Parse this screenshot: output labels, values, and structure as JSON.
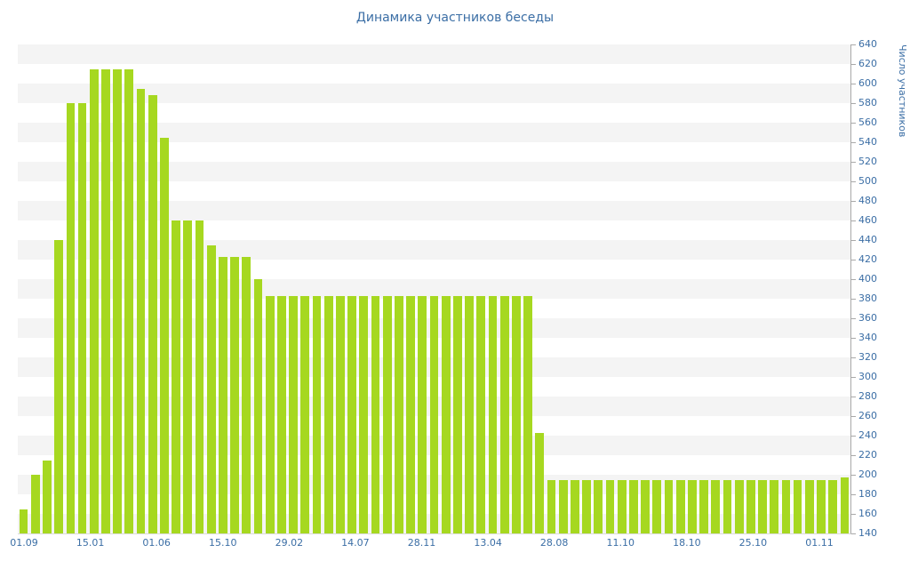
{
  "title": "Динамика участников беседы",
  "chart_data": {
    "type": "bar",
    "title": "Динамика участников беседы",
    "xlabel": "",
    "ylabel": "Число участников",
    "ylim": [
      140,
      640
    ],
    "ytick_step": 20,
    "grid": "striped-horizontal-bands",
    "legend": "none",
    "bar_color": "#a6d820",
    "label_color": "#3b6ea5",
    "x_labels": [
      "01.09",
      "15.01",
      "01.06",
      "15.10",
      "29.02",
      "14.07",
      "28.11",
      "13.04",
      "28.08",
      "11.10",
      "18.10",
      "25.10",
      "01.11"
    ],
    "values": [
      165,
      200,
      215,
      440,
      580,
      580,
      615,
      615,
      615,
      615,
      595,
      588,
      545,
      460,
      460,
      460,
      435,
      423,
      423,
      423,
      400,
      383,
      383,
      383,
      383,
      383,
      383,
      383,
      383,
      383,
      383,
      383,
      383,
      383,
      383,
      383,
      383,
      383,
      383,
      383,
      383,
      383,
      383,
      383,
      243,
      195,
      195,
      195,
      195,
      195,
      195,
      195,
      195,
      195,
      195,
      195,
      195,
      195,
      195,
      195,
      195,
      195,
      195,
      195,
      195,
      195,
      195,
      195,
      195,
      195,
      197
    ]
  }
}
